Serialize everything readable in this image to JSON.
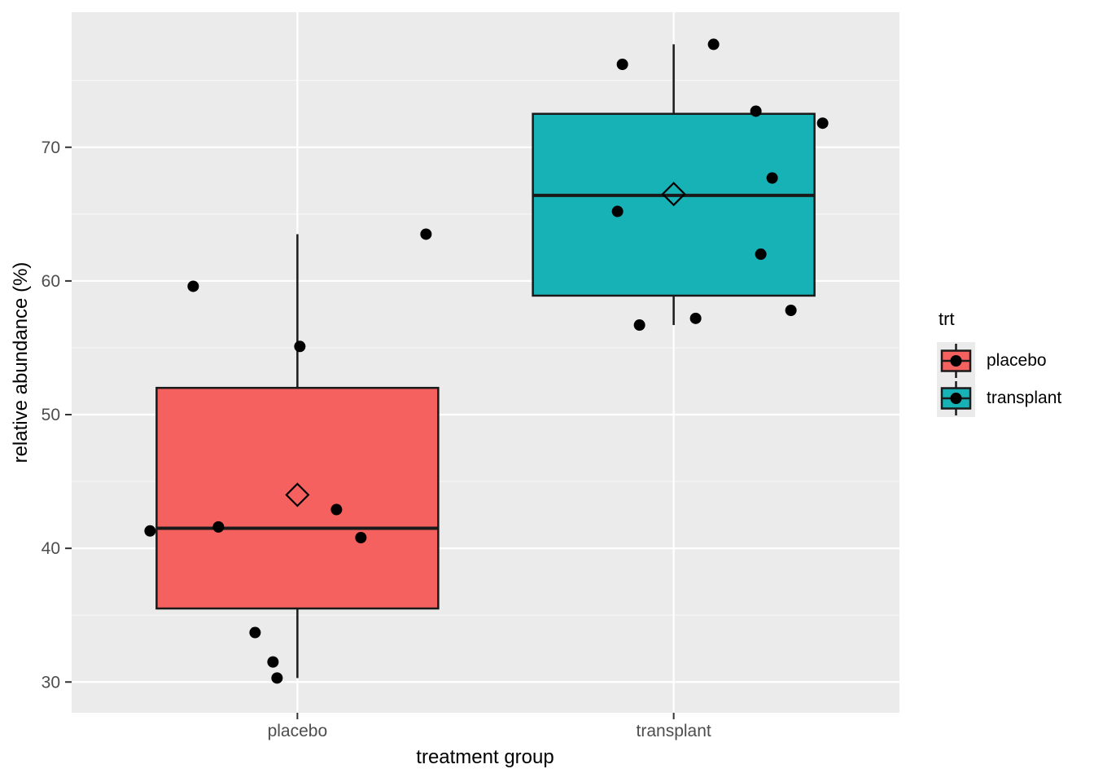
{
  "chart_data": {
    "type": "boxplot",
    "title": "",
    "xlabel": "treatment group",
    "ylabel": "relative abundance (%)",
    "ylim": [
      27.7,
      80.1
    ],
    "yticks": [
      30,
      40,
      50,
      60,
      70
    ],
    "yticks_minor": [
      35,
      45,
      55,
      65,
      75
    ],
    "categories": [
      "placebo",
      "transplant"
    ],
    "grid": "on",
    "legend": {
      "title": "trt",
      "position": "right",
      "entries": [
        "placebo",
        "transplant"
      ]
    },
    "groups": [
      {
        "label": "placebo",
        "color": "#F4615E",
        "box": {
          "min": 30.3,
          "q1": 35.5,
          "median": 41.5,
          "q3": 52.0,
          "max": 63.5,
          "mean": 44.0
        },
        "points": [
          {
            "value": 63.5,
            "dx": 158
          },
          {
            "value": 59.6,
            "dx": -128
          },
          {
            "value": 55.1,
            "dx": 3
          },
          {
            "value": 42.9,
            "dx": 48
          },
          {
            "value": 41.6,
            "dx": -97
          },
          {
            "value": 41.3,
            "dx": -181
          },
          {
            "value": 40.8,
            "dx": 78
          },
          {
            "value": 33.7,
            "dx": -52
          },
          {
            "value": 31.5,
            "dx": -30
          },
          {
            "value": 30.3,
            "dx": -25
          }
        ]
      },
      {
        "label": "transplant",
        "color": "#17B2B6",
        "box": {
          "min": 56.7,
          "q1": 58.9,
          "median": 66.4,
          "q3": 72.5,
          "max": 77.7,
          "mean": 66.5
        },
        "points": [
          {
            "value": 77.7,
            "dx": 49
          },
          {
            "value": 76.2,
            "dx": -63
          },
          {
            "value": 72.7,
            "dx": 101
          },
          {
            "value": 71.8,
            "dx": 183
          },
          {
            "value": 67.7,
            "dx": 121
          },
          {
            "value": 65.2,
            "dx": -69
          },
          {
            "value": 62.0,
            "dx": 107
          },
          {
            "value": 57.8,
            "dx": 144
          },
          {
            "value": 57.2,
            "dx": 27
          },
          {
            "value": 56.7,
            "dx": -42
          }
        ]
      }
    ],
    "style": {
      "panel_bg": "#EBEBEB",
      "grid_color": "#FFFFFF",
      "tick_color": "#333333",
      "tick_label_color": "#4D4D4D",
      "axis_title_color": "#000000",
      "box_line_color": "#1A1A1A",
      "point_color": "#000000"
    }
  }
}
